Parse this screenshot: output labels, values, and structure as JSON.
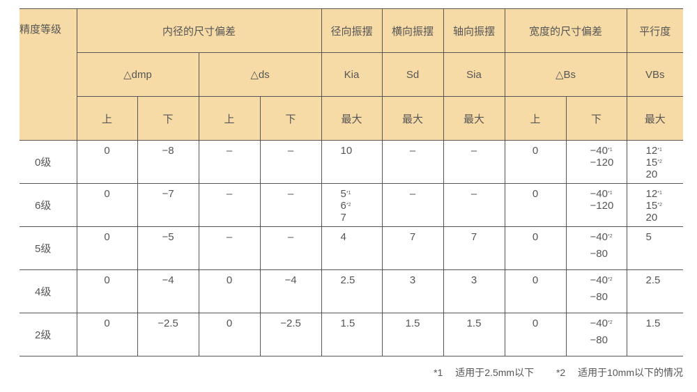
{
  "header": {
    "grade": "精度等级",
    "bore": "内径的尺寸偏差",
    "radial": "径向振摆",
    "lateral": "横向振摆",
    "axial": "轴向振摆",
    "width": "宽度的尺寸偏差",
    "parallel": "平行度",
    "dmp": "△dmp",
    "ds": "△ds",
    "kia": "Kia",
    "sd": "Sd",
    "sia": "Sia",
    "bs": "△Bs",
    "vbs": "VBs",
    "upper": "上",
    "lower": "下",
    "max": "最大"
  },
  "rows": [
    {
      "grade": "0级",
      "dmp_u": "0",
      "dmp_l": "−8",
      "ds_u": "–",
      "ds_l": "–",
      "kia": [
        [
          "10",
          ""
        ]
      ],
      "sd": "–",
      "sia": "–",
      "bs_u": "0",
      "bs_l": [
        [
          "−40",
          "*1"
        ],
        [
          "−120",
          ""
        ]
      ],
      "bs_l_style": "tight",
      "vbs": [
        [
          "12",
          "*1"
        ],
        [
          "15",
          "*2"
        ],
        [
          "20",
          ""
        ]
      ]
    },
    {
      "grade": "6级",
      "dmp_u": "0",
      "dmp_l": "−7",
      "ds_u": "–",
      "ds_l": "–",
      "kia": [
        [
          "5",
          "*1"
        ],
        [
          "6",
          "*2"
        ],
        [
          "7",
          ""
        ]
      ],
      "sd": "–",
      "sia": "–",
      "bs_u": "0",
      "bs_l": [
        [
          "−40",
          "*1"
        ],
        [
          "−120",
          ""
        ]
      ],
      "bs_l_style": "tight",
      "vbs": [
        [
          "12",
          "*1"
        ],
        [
          "15",
          "*2"
        ],
        [
          "20",
          ""
        ]
      ]
    },
    {
      "grade": "5级",
      "dmp_u": "0",
      "dmp_l": "−5",
      "ds_u": "–",
      "ds_l": "–",
      "kia": [
        [
          "4",
          ""
        ]
      ],
      "sd": "7",
      "sia": "7",
      "bs_u": "0",
      "bs_l": [
        [
          "−40",
          "*2"
        ],
        [
          "−80",
          ""
        ]
      ],
      "bs_l_style": "wide",
      "vbs": [
        [
          "5",
          ""
        ]
      ]
    },
    {
      "grade": "4级",
      "dmp_u": "0",
      "dmp_l": "−4",
      "ds_u": "0",
      "ds_l": "−4",
      "kia": [
        [
          "2.5",
          ""
        ]
      ],
      "sd": "3",
      "sia": "3",
      "bs_u": "0",
      "bs_l": [
        [
          "−40",
          "*2"
        ],
        [
          "−80",
          ""
        ]
      ],
      "bs_l_style": "wide",
      "vbs": [
        [
          "2.5",
          ""
        ]
      ]
    },
    {
      "grade": "2级",
      "dmp_u": "0",
      "dmp_l": "−2.5",
      "ds_u": "0",
      "ds_l": "−2.5",
      "kia": [
        [
          "1.5",
          ""
        ]
      ],
      "sd": "1.5",
      "sia": "1.5",
      "bs_u": "0",
      "bs_l": [
        [
          "−40",
          "*2"
        ],
        [
          "−80",
          ""
        ]
      ],
      "bs_l_style": "wide",
      "vbs": [
        [
          "1.5",
          ""
        ]
      ]
    }
  ],
  "footnotes": [
    {
      "mark": "*1",
      "text": "适用于2.5mm以下"
    },
    {
      "mark": "*2",
      "text": "适用于10mm以下的情况"
    }
  ],
  "colors": {
    "header_bg": "#f7dba6",
    "border": "#555555",
    "text": "#555555"
  }
}
